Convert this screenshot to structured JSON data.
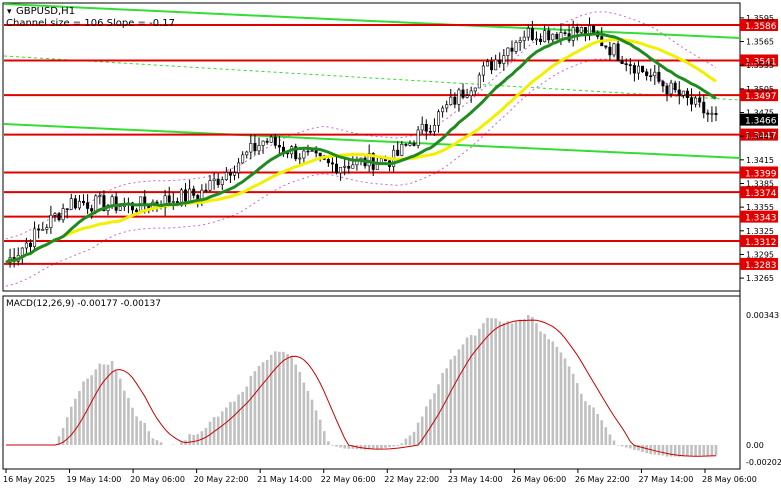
{
  "window": {
    "symbol_title": "GBPUSD,H1",
    "indicator_line": "Channel size = 106 Slope = -0.17"
  },
  "macd": {
    "label": "MACD(12,26,9) -0.00177 -0.00137",
    "ticks": [
      "0.00343",
      "0.00",
      "-0.00202"
    ]
  },
  "price_axis": {
    "ticks": [
      "1.3595",
      "1.3565",
      "1.3535",
      "1.3505",
      "1.3475",
      "1.3445",
      "1.3415",
      "1.3385",
      "1.3355",
      "1.3325",
      "1.3295",
      "1.3265"
    ],
    "current_price": "1.3466"
  },
  "levels": [
    "1.3586",
    "1.3541",
    "1.3497",
    "1.3447",
    "1.3399",
    "1.3374",
    "1.3343",
    "1.3312",
    "1.3283"
  ],
  "time_axis": {
    "labels": [
      "16 May 2025",
      "19 May 14:00",
      "20 May 06:00",
      "20 May 22:00",
      "21 May 14:00",
      "22 May 06:00",
      "22 May 22:00",
      "23 May 14:00",
      "26 May 06:00",
      "26 May 22:00",
      "27 May 14:00",
      "28 May 06:00"
    ]
  },
  "colors": {
    "level_line": "#e00000",
    "level_label_bg": "#e00000",
    "channel": "#33dd33",
    "ma_slow": "#1f8a1f",
    "ma_fast": "#f0f000",
    "candles": "#000000",
    "bollinger": "#cc66cc",
    "macd_hist": "#c0c0c0",
    "macd_signal": "#cc0000",
    "current_price_bg": "#000000"
  },
  "chart_data": {
    "type": "line",
    "symbol": "GBPUSD",
    "timeframe": "H1",
    "ylim": [
      1.3255,
      1.3605
    ],
    "x": [
      "16 May 2025",
      "19 May 14:00",
      "20 May 06:00",
      "20 May 22:00",
      "21 May 14:00",
      "22 May 06:00",
      "22 May 22:00",
      "23 May 14:00",
      "26 May 06:00",
      "26 May 22:00",
      "27 May 14:00",
      "28 May 06:00"
    ],
    "series": [
      {
        "name": "close",
        "values": [
          1.3285,
          1.3362,
          1.3356,
          1.3372,
          1.344,
          1.3408,
          1.3416,
          1.3495,
          1.3575,
          1.3578,
          1.352,
          1.3466
        ]
      }
    ],
    "levels": [
      1.3586,
      1.3541,
      1.3497,
      1.3447,
      1.3399,
      1.3374,
      1.3343,
      1.3312,
      1.3283
    ],
    "current": 1.3466
  }
}
